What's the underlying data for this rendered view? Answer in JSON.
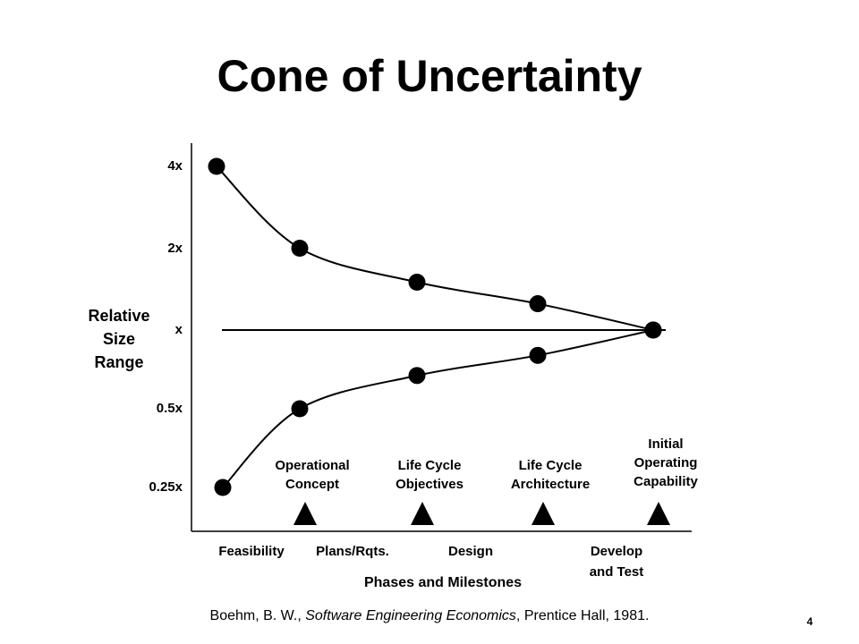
{
  "slide": {
    "title": "Cone of Uncertainty",
    "citation": {
      "before": "Boehm, B. W., ",
      "italic": "Software Engineering Economics",
      "after": ", Prentice Hall, 1981."
    },
    "page_number": "4"
  },
  "chart_data": {
    "type": "line",
    "title": "",
    "ylabel_lines": [
      "Relative",
      "Size",
      "Range"
    ],
    "xlabel": "Phases and Milestones",
    "y_scale": "log2",
    "y_ticks": [
      {
        "label": "4x",
        "value": 4
      },
      {
        "label": "2x",
        "value": 2
      },
      {
        "label": "x",
        "value": 1
      },
      {
        "label": "0.5x",
        "value": 0.5
      },
      {
        "label": "0.25x",
        "value": 0.25
      }
    ],
    "phases": [
      {
        "lines": [
          "Feasibility"
        ]
      },
      {
        "lines": [
          "Plans/Rqts."
        ]
      },
      {
        "lines": [
          "Design"
        ]
      },
      {
        "lines": [
          "Develop",
          "and Test"
        ]
      }
    ],
    "milestones": [
      {
        "lines": [
          "Operational",
          "Concept"
        ]
      },
      {
        "lines": [
          "Life Cycle",
          "Objectives"
        ]
      },
      {
        "lines": [
          "Life Cycle",
          "Architecture"
        ]
      },
      {
        "lines": [
          "Initial",
          "Operating",
          "Capability"
        ]
      }
    ],
    "reference_line": {
      "value": 1
    },
    "series": [
      {
        "points": [
          {
            "at": "start",
            "y": 4
          },
          {
            "at": "Operational Concept",
            "y": 2
          },
          {
            "at": "Life Cycle Objectives",
            "y": 1.5
          },
          {
            "at": "Life Cycle Architecture",
            "y": 1.25
          },
          {
            "at": "Initial Operating Capability",
            "y": 1
          }
        ]
      },
      {
        "points": [
          {
            "at": "start",
            "y": 0.25
          },
          {
            "at": "Operational Concept",
            "y": 0.5
          },
          {
            "at": "Life Cycle Objectives",
            "y": 0.67
          },
          {
            "at": "Life Cycle Architecture",
            "y": 0.8
          },
          {
            "at": "Initial Operating Capability",
            "y": 1
          }
        ]
      }
    ],
    "grid": false,
    "legend": "none"
  }
}
